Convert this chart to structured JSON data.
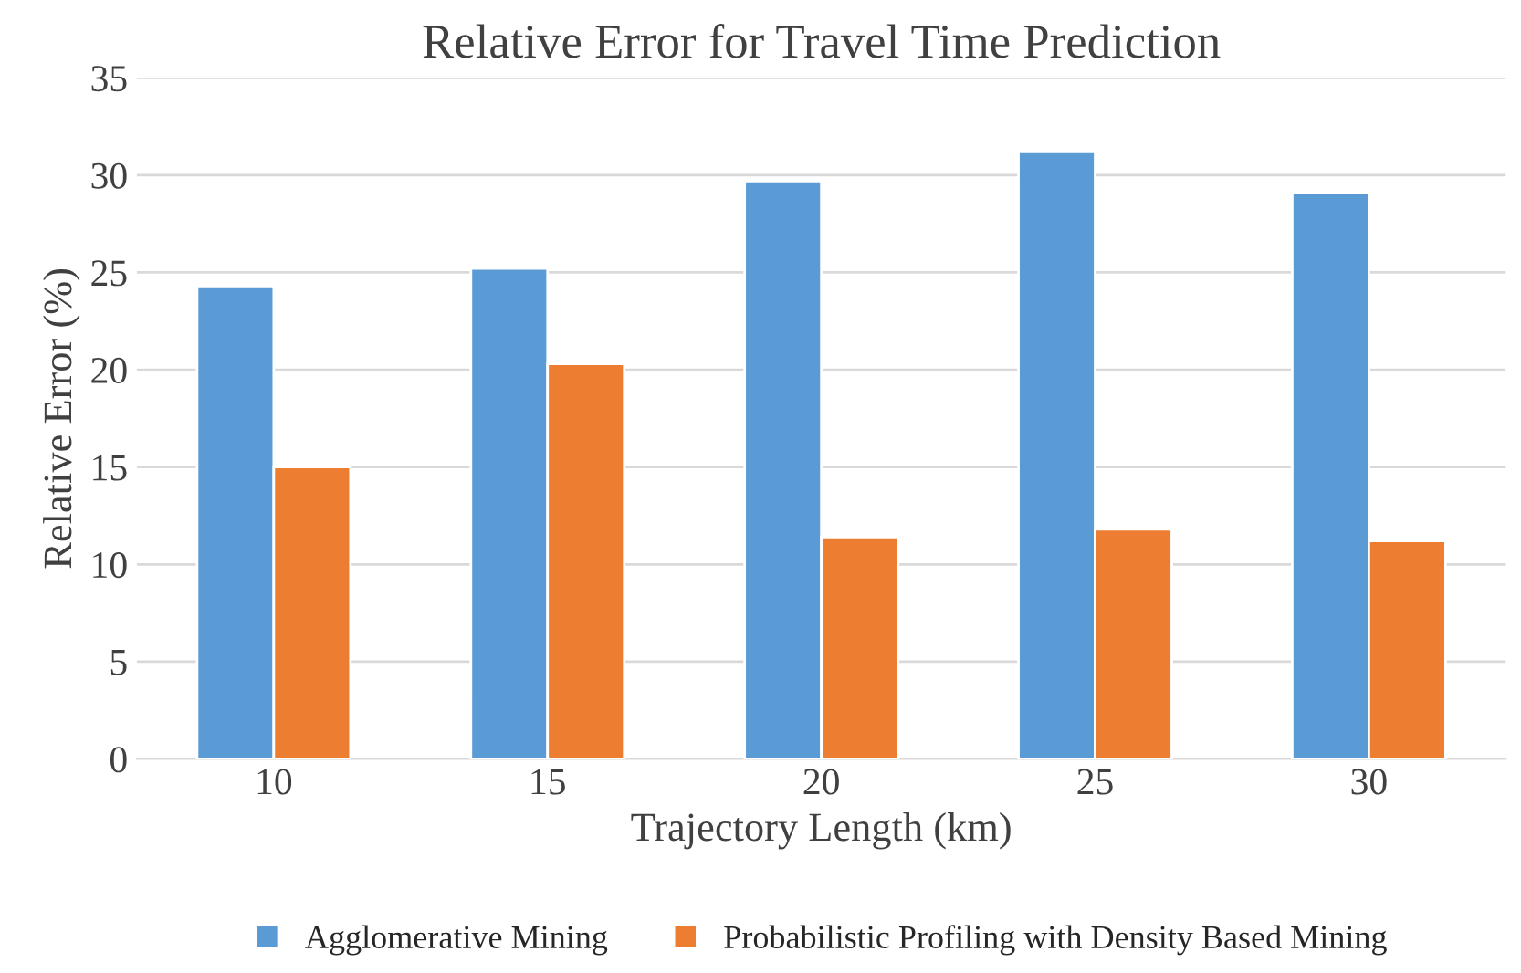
{
  "chart_data": {
    "type": "bar",
    "title": "Relative Error for Travel Time Prediction",
    "xlabel": "Trajectory Length (km)",
    "ylabel": "Relative Error (%)",
    "categories": [
      "10",
      "15",
      "20",
      "25",
      "30"
    ],
    "series": [
      {
        "name": "Agglomerative Mining",
        "color": "#5b9bd5",
        "values": [
          24.3,
          25.2,
          29.7,
          31.2,
          29.1
        ]
      },
      {
        "name": "Probabilistic Profiling with Density Based Mining",
        "color": "#ed7d31",
        "values": [
          15.0,
          20.3,
          11.4,
          11.8,
          11.2
        ]
      }
    ],
    "ylim": [
      0,
      35
    ],
    "yticks": [
      0,
      5,
      10,
      15,
      20,
      25,
      30,
      35
    ],
    "grid": "y",
    "legend": "bottom"
  }
}
